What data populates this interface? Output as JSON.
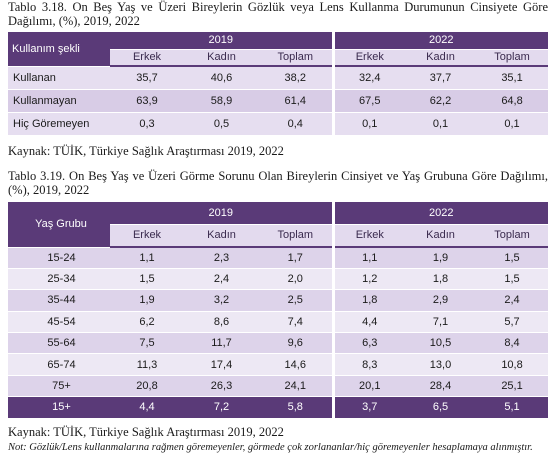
{
  "table1": {
    "caption": "Tablo 3.18. On Beş Yaş ve Üzeri Bireylerin Gözlük veya Lens Kullanma Durumunun Cinsiyete Göre Dağılımı, (%), 2019, 2022",
    "header": {
      "row_label": "Kullanım şekli",
      "years": [
        "2019",
        "2022"
      ],
      "columns": [
        "Erkek",
        "Kadın",
        "Toplam",
        "Erkek",
        "Kadın",
        "Toplam"
      ]
    },
    "rows": [
      {
        "label": "Kullanan",
        "values": [
          "35,7",
          "40,6",
          "38,2",
          "32,4",
          "37,7",
          "35,1"
        ]
      },
      {
        "label": "Kullanmayan",
        "values": [
          "63,9",
          "58,9",
          "61,4",
          "67,5",
          "62,2",
          "64,8"
        ]
      },
      {
        "label": "Hiç Göremeyen",
        "values": [
          "0,3",
          "0,5",
          "0,4",
          "0,1",
          "0,1",
          "0,1"
        ]
      }
    ],
    "source": "Kaynak: TÜİK, Türkiye Sağlık Araştırması 2019, 2022"
  },
  "table2": {
    "caption": "Tablo 3.19. On Beş Yaş ve Üzeri Görme Sorunu Olan Bireylerin Cinsiyet ve Yaş Grubuna Göre Dağılımı, (%), 2019, 2022",
    "header": {
      "row_label": "Yaş Grubu",
      "years": [
        "2019",
        "2022"
      ],
      "columns": [
        "Erkek",
        "Kadın",
        "Toplam",
        "Erkek",
        "Kadın",
        "Toplam"
      ]
    },
    "rows": [
      {
        "label": "15-24",
        "values": [
          "1,1",
          "2,3",
          "1,7",
          "1,1",
          "1,9",
          "1,5"
        ]
      },
      {
        "label": "25-34",
        "values": [
          "1,5",
          "2,4",
          "2,0",
          "1,2",
          "1,8",
          "1,5"
        ]
      },
      {
        "label": "35-44",
        "values": [
          "1,9",
          "3,2",
          "2,5",
          "1,8",
          "2,9",
          "2,4"
        ]
      },
      {
        "label": "45-54",
        "values": [
          "6,2",
          "8,6",
          "7,4",
          "4,4",
          "7,1",
          "5,7"
        ]
      },
      {
        "label": "55-64",
        "values": [
          "7,5",
          "11,7",
          "9,6",
          "6,3",
          "10,5",
          "8,4"
        ]
      },
      {
        "label": "65-74",
        "values": [
          "11,3",
          "17,4",
          "14,6",
          "8,3",
          "13,0",
          "10,8"
        ]
      },
      {
        "label": "75+",
        "values": [
          "20,8",
          "26,3",
          "24,1",
          "20,1",
          "28,4",
          "25,1"
        ]
      },
      {
        "label": "15+",
        "values": [
          "4,4",
          "7,2",
          "5,8",
          "3,7",
          "6,5",
          "5,1"
        ]
      }
    ],
    "source": "Kaynak: TÜİK, Türkiye Sağlık Araştırması 2019, 2022",
    "note": "Not: Gözlük/Lens kullanmalarına rağmen göremeyenler, görmede çok zorlananlar/hiç göremeyenler hesaplamaya alınmıştır."
  }
}
